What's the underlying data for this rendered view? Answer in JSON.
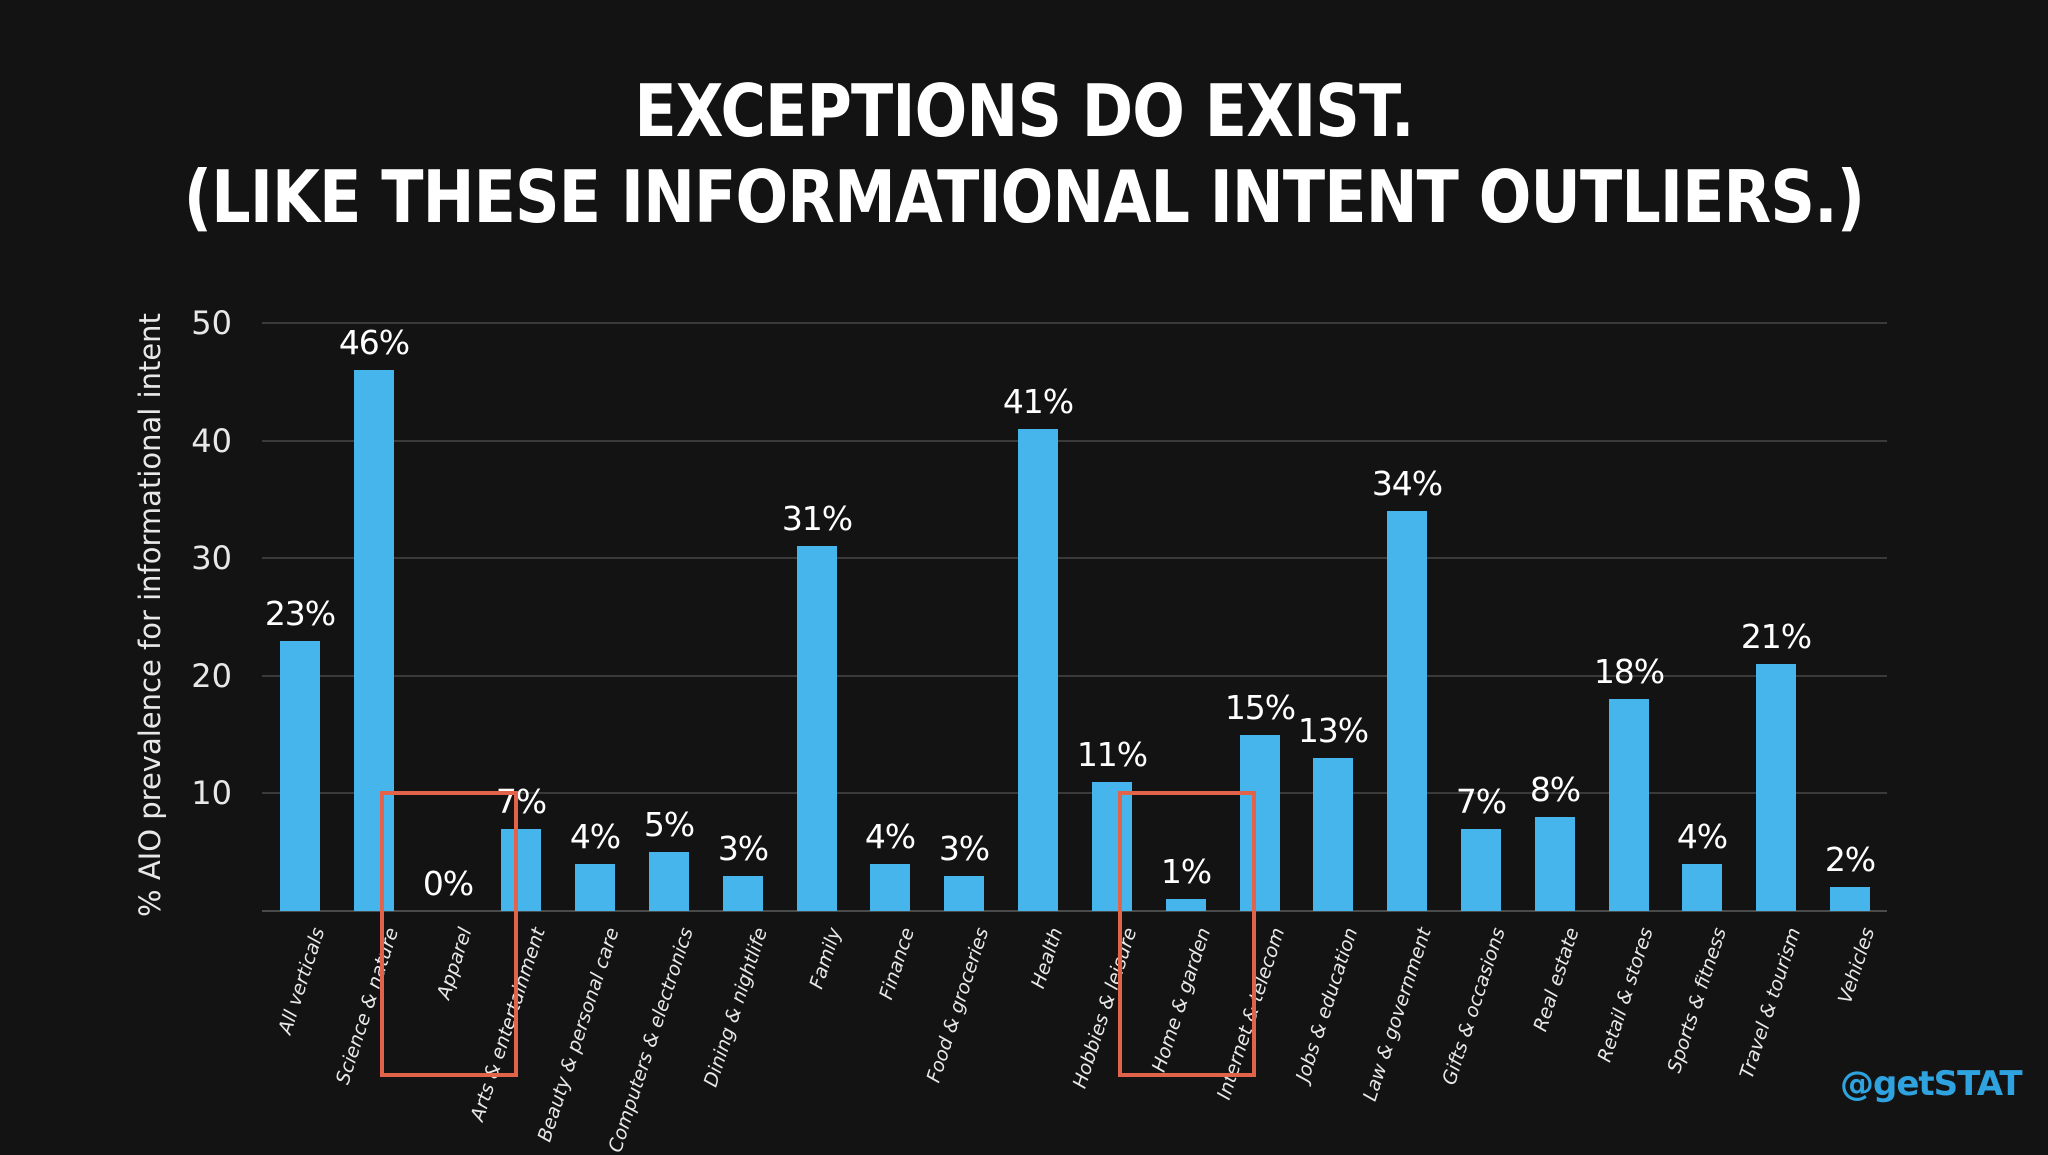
{
  "slide": {
    "title_line1": "EXCEPTIONS DO EXIST.",
    "title_line2": "(LIKE THESE INFORMATIONAL INTENT OUTLIERS.)",
    "handle": "@getSTAT",
    "colors": {
      "background": "#131313",
      "bar": "#45b5ec",
      "highlight": "#e0634a",
      "handle": "#2fa3e0",
      "text": "#ffffff"
    }
  },
  "chart_data": {
    "type": "bar",
    "title": "EXCEPTIONS DO EXIST. (LIKE THESE INFORMATIONAL INTENT OUTLIERS.)",
    "xlabel": "",
    "ylabel": "% AIO prevalence for informational intent",
    "ylim": [
      0,
      50
    ],
    "yticks": [
      "10",
      "20",
      "30",
      "40",
      "50"
    ],
    "grid": true,
    "legend": null,
    "categories": [
      "All verticals",
      "Science & nature",
      "Apparel",
      "Arts & entertainment",
      "Beauty & personal care",
      "Computers & electronics",
      "Dining & nightlife",
      "Family",
      "Finance",
      "Food & groceries",
      "Health",
      "Hobbies & leisure",
      "Home & garden",
      "Internet & telecom",
      "Jobs & education",
      "Law & government",
      "Gifts & occasions",
      "Real estate",
      "Retail & stores",
      "Sports & fitness",
      "Travel & tourism",
      "Vehicles"
    ],
    "values": [
      23,
      46,
      0,
      7,
      4,
      5,
      3,
      31,
      4,
      3,
      41,
      11,
      1,
      15,
      13,
      34,
      7,
      8,
      18,
      4,
      21,
      2
    ],
    "labels": [
      "23%",
      "46%",
      "0%",
      "7%",
      "4%",
      "5%",
      "3%",
      "31%",
      "4%",
      "3%",
      "41%",
      "11%",
      "1%",
      "15%",
      "13%",
      "34%",
      "7%",
      "8%",
      "18%",
      "4%",
      "21%",
      "2%"
    ],
    "annotations": [
      {
        "type": "highlight-box",
        "category": "Apparel"
      },
      {
        "type": "highlight-box",
        "category": "Home & garden"
      }
    ]
  }
}
